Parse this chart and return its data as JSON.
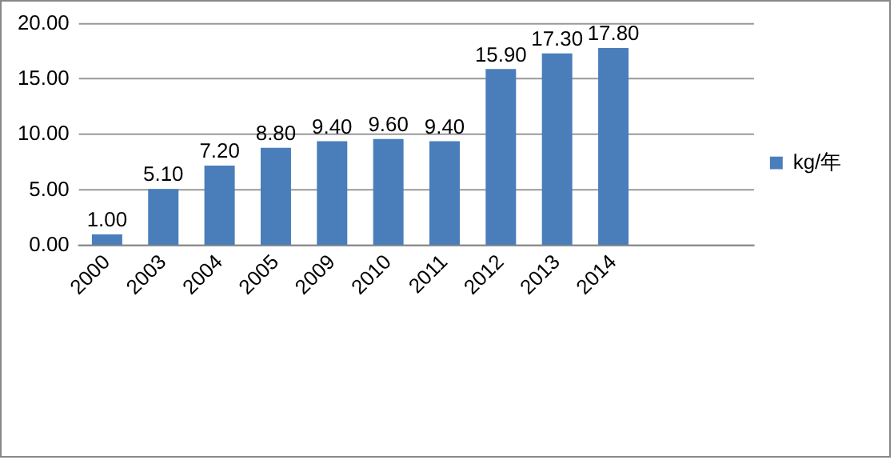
{
  "chart_data": {
    "type": "bar",
    "categories": [
      "2000",
      "2003",
      "2004",
      "2005",
      "2009",
      "2010",
      "2011",
      "2012",
      "2013",
      "2014",
      null,
      null
    ],
    "series": [
      {
        "name": "kg/年",
        "color": "#4a7ebb",
        "values": [
          1.0,
          5.1,
          7.2,
          8.8,
          9.4,
          9.6,
          9.4,
          15.9,
          17.3,
          17.8,
          null,
          null
        ],
        "value_labels": [
          "1.00",
          "5.10",
          "7.20",
          "8.80",
          "9.40",
          "9.60",
          "9.40",
          "15.90",
          "17.30",
          "17.80",
          null,
          null
        ]
      }
    ],
    "ylim": [
      0,
      20
    ],
    "yticks": [
      {
        "value": 0,
        "label": "0.00"
      },
      {
        "value": 5,
        "label": "5.00"
      },
      {
        "value": 10,
        "label": "10.00"
      },
      {
        "value": 15,
        "label": "15.00"
      },
      {
        "value": 20,
        "label": "20.00"
      }
    ],
    "grid": "y",
    "legend": "right"
  }
}
